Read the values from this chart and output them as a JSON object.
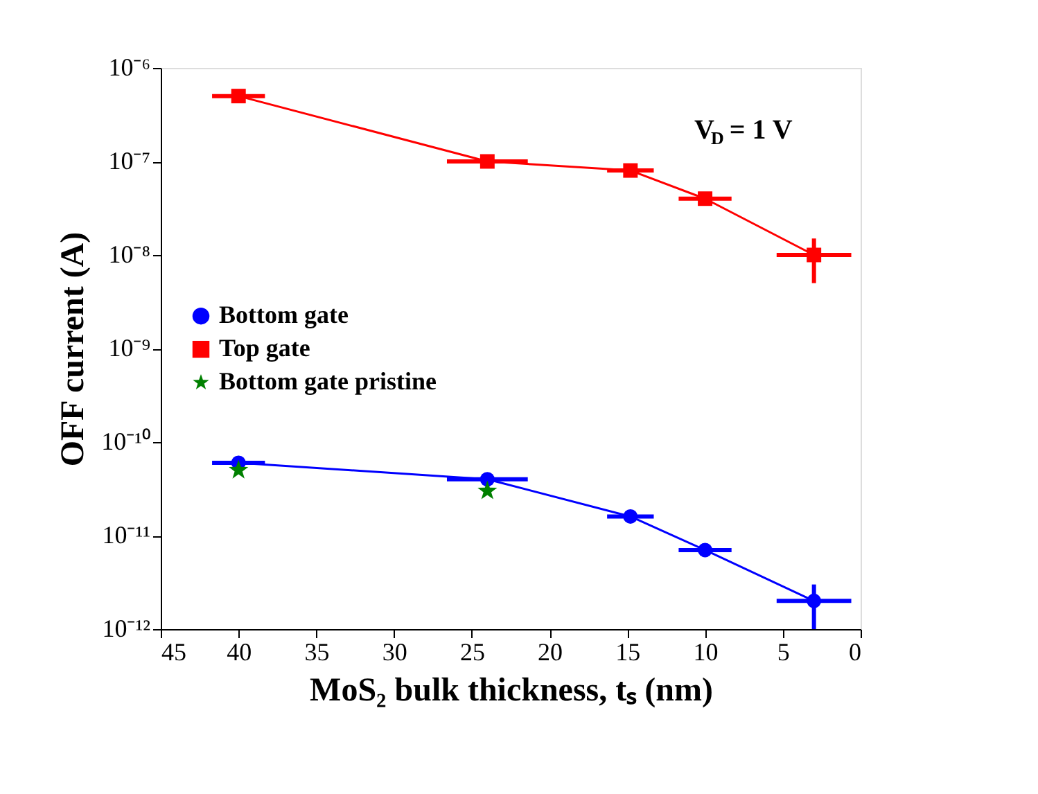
{
  "chart_data": {
    "type": "line",
    "xlabel": "MoS₂ bulk thickness, tₛ (nm)",
    "ylabel": "OFF current (A)",
    "annotations": [
      "V$_{D}$ = 1 V"
    ],
    "log": "y",
    "grid": false,
    "legend": "left",
    "line_style": "solid",
    "xlim": [
      45,
      0
    ],
    "xticks": [
      45,
      40,
      35,
      30,
      25,
      20,
      15,
      10,
      5,
      0
    ],
    "ylim": [
      1e-12,
      1e-06
    ],
    "yticks": [
      {
        "value": 1e-12,
        "label": "10⁻¹²"
      },
      {
        "value": 1e-11,
        "label": "10⁻¹¹"
      },
      {
        "value": 1e-10,
        "label": "10⁻¹⁰"
      },
      {
        "value": 1e-09,
        "label": "10⁻⁹"
      },
      {
        "value": 1e-08,
        "label": "10⁻⁸"
      },
      {
        "value": 1e-07,
        "label": "10⁻⁷"
      },
      {
        "value": 1e-06,
        "label": "10⁻⁶"
      }
    ],
    "series": [
      {
        "name": "Bottom gate",
        "color": "#0000ff",
        "marker": "circle",
        "x": [
          40,
          24,
          14.8,
          10,
          3
        ],
        "values": [
          6e-11,
          4e-11,
          1.6e-11,
          7e-12,
          2e-12
        ],
        "xerrors": [
          1.7,
          2.6,
          1.5,
          1.7,
          2.4
        ],
        "errors": [
          null,
          null,
          null,
          null,
          [
            1e-12,
            3e-12
          ]
        ]
      },
      {
        "name": "Top gate",
        "color": "#ff0000",
        "marker": "square",
        "x": [
          40,
          24,
          14.8,
          10,
          3
        ],
        "values": [
          5e-07,
          1e-07,
          8e-08,
          4e-08,
          1e-08
        ],
        "xerrors": [
          1.7,
          2.6,
          1.5,
          1.7,
          2.4
        ],
        "errors": [
          null,
          null,
          null,
          null,
          [
            5e-09,
            1.5e-08
          ]
        ]
      },
      {
        "name": "Bottom gate pristine",
        "color": "#008000",
        "type": "scatter",
        "marker": "star",
        "x": [
          40,
          24
        ],
        "values": [
          5e-11,
          3e-11
        ]
      }
    ]
  }
}
